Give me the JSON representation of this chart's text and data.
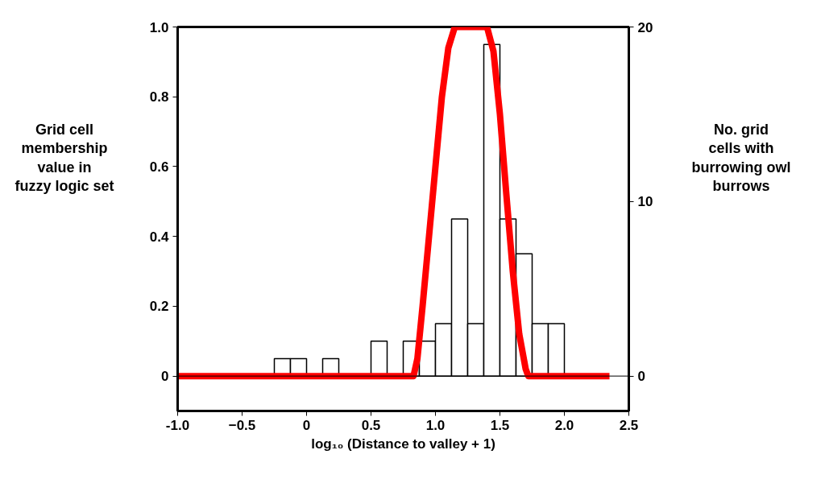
{
  "chart_data": {
    "type": "line",
    "xlabel": "log₁₀ (Distance to valley + 1)",
    "ylabel": "Grid cell\nmembership\nvalue in\nfuzzy logic set",
    "y2label": "No. grid\ncells with\nburrowing owl\nburrows",
    "xlim": [
      -1.0,
      2.5
    ],
    "xticks": [
      {
        "value": -1.0,
        "label": "-1.0"
      },
      -0.5,
      0,
      0.5,
      {
        "value": 1.0,
        "label": "1.0"
      },
      1.5,
      {
        "value": 2.0,
        "label": "2.0"
      },
      2.5
    ],
    "ylim": [
      -0.1,
      1.0
    ],
    "yticks": [
      0,
      0.2,
      0.4,
      0.6,
      0.8,
      {
        "value": 1.0,
        "label": "1.0"
      }
    ],
    "y2lim": [
      -2,
      20
    ],
    "y2ticks": [
      0,
      10,
      20
    ],
    "ref_lines": [
      {
        "axis": "y",
        "value": 0,
        "color": "#000000"
      }
    ],
    "grid": false,
    "series": [
      {
        "type": "histogram",
        "axis": "y2",
        "color": "#ffffff",
        "bins": [
          -0.25,
          -0.125,
          0,
          0.125,
          0.25,
          0.375,
          0.5,
          0.625,
          0.75,
          0.875,
          1.0,
          1.125,
          1.25,
          1.375,
          1.5,
          1.625,
          1.75,
          1.875,
          2.0
        ],
        "values": [
          1,
          1,
          0,
          1,
          0,
          0,
          2,
          0,
          2,
          2,
          3,
          9,
          3,
          19,
          9,
          7,
          3,
          3
        ]
      },
      {
        "color": "#ff0000",
        "x": [
          -1.0,
          0.83,
          0.86,
          0.9,
          0.95,
          1.0,
          1.05,
          1.1,
          1.15,
          1.4,
          1.45,
          1.5,
          1.55,
          1.6,
          1.65,
          1.7,
          1.72,
          2.35
        ],
        "values": [
          0,
          0,
          0.05,
          0.2,
          0.4,
          0.6,
          0.8,
          0.94,
          1.0,
          1.0,
          0.93,
          0.75,
          0.52,
          0.3,
          0.12,
          0.02,
          0,
          0
        ]
      }
    ]
  }
}
